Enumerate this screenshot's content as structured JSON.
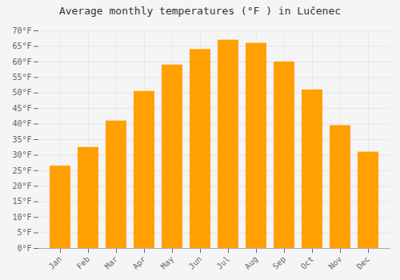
{
  "chart_data": {
    "type": "bar",
    "title": "Average monthly temperatures (°F ) in Lučenec",
    "categories": [
      "Jan",
      "Feb",
      "Mar",
      "Apr",
      "May",
      "Jun",
      "Jul",
      "Aug",
      "Sep",
      "Oct",
      "Nov",
      "Dec"
    ],
    "values": [
      26.5,
      32.5,
      41,
      50.5,
      59,
      64,
      67,
      66,
      60,
      51,
      39.5,
      31
    ],
    "color": "#FFA000",
    "ylim": [
      0,
      70
    ],
    "yticks": [
      {
        "value": 0,
        "label": "0°F"
      },
      {
        "value": 5,
        "label": "5°F"
      },
      {
        "value": 10,
        "label": "10°F"
      },
      {
        "value": 15,
        "label": "15°F"
      },
      {
        "value": 20,
        "label": "20°F"
      },
      {
        "value": 25,
        "label": "25°F"
      },
      {
        "value": 30,
        "label": "30°F"
      },
      {
        "value": 35,
        "label": "35°F"
      },
      {
        "value": 40,
        "label": "40°F"
      },
      {
        "value": 45,
        "label": "45°F"
      },
      {
        "value": 50,
        "label": "50°F"
      },
      {
        "value": 55,
        "label": "55°F"
      },
      {
        "value": 60,
        "label": "60°F"
      },
      {
        "value": 65,
        "label": "65°F"
      },
      {
        "value": 70,
        "label": "70°F"
      }
    ],
    "grid": true
  }
}
